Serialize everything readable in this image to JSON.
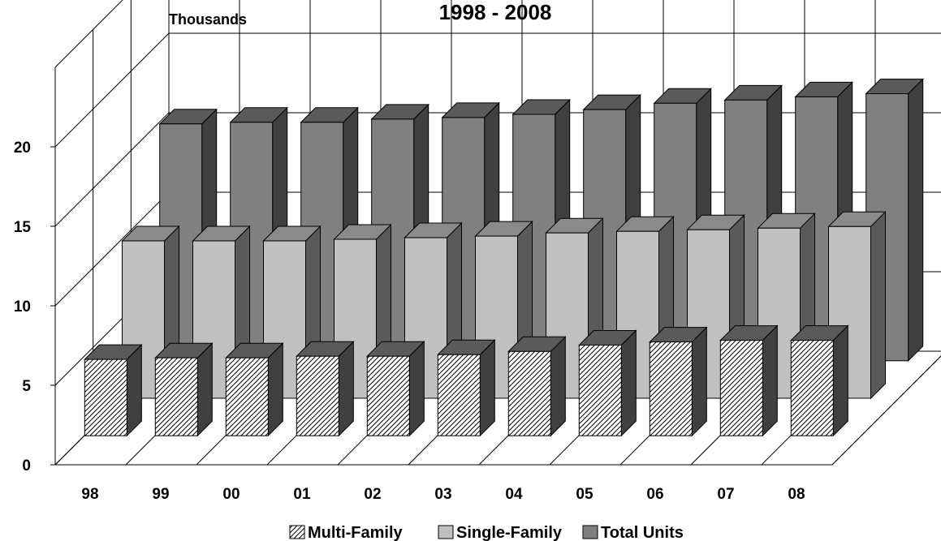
{
  "chart_data": {
    "type": "bar",
    "title": "1998 - 2008",
    "ylabel": "Thousands",
    "xlabel": "",
    "categories": [
      "98",
      "99",
      "00",
      "01",
      "02",
      "03",
      "04",
      "05",
      "06",
      "07",
      "08"
    ],
    "yticks": [
      "0",
      "5",
      "10",
      "15",
      "20"
    ],
    "ylim": [
      0,
      25
    ],
    "grid": true,
    "legend": "bottom",
    "series": [
      {
        "name": "Multi-Family",
        "values": [
          4.8,
          4.9,
          4.9,
          5.0,
          5.0,
          5.1,
          5.3,
          5.7,
          5.9,
          6.0,
          6.0
        ],
        "color": "#ffffff",
        "pattern": "hatch"
      },
      {
        "name": "Single-Family",
        "values": [
          9.9,
          9.9,
          9.9,
          10.0,
          10.1,
          10.2,
          10.4,
          10.5,
          10.6,
          10.7,
          10.8
        ],
        "color": "#c0c0c0"
      },
      {
        "name": "Total Units",
        "values": [
          14.9,
          15.0,
          15.0,
          15.2,
          15.3,
          15.5,
          15.8,
          16.2,
          16.4,
          16.6,
          16.8
        ],
        "color": "#808080"
      }
    ]
  }
}
